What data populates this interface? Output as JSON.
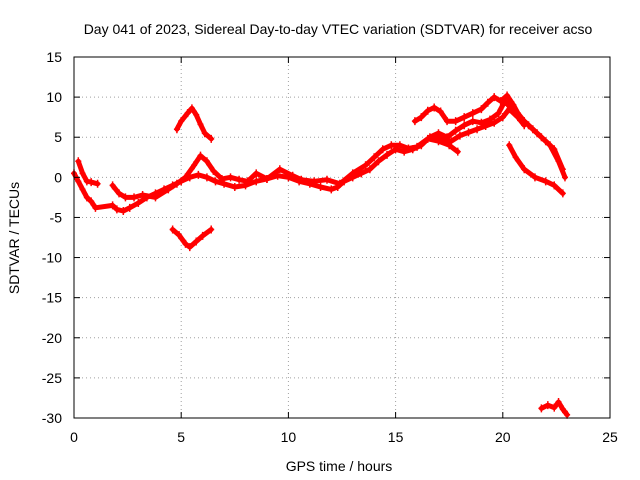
{
  "chart_data": {
    "type": "scatter",
    "title": "Day 041 of 2023, Sidereal Day-to-day VTEC variation (SDTVAR) for receiver acso",
    "xlabel": "GPS time / hours",
    "ylabel": "SDTVAR / TECUs",
    "xlim": [
      0,
      25
    ],
    "ylim": [
      -30,
      15
    ],
    "xticks": [
      0,
      5,
      10,
      15,
      20,
      25
    ],
    "yticks": [
      15,
      10,
      5,
      0,
      -5,
      -10,
      -15,
      -20,
      -25,
      -30
    ],
    "grid": true,
    "legend": "none",
    "series_color": "#ff0000",
    "series": [
      {
        "name": "main-trace",
        "points": [
          [
            0.0,
            0.5
          ],
          [
            0.2,
            -0.5
          ],
          [
            0.4,
            -1.5
          ],
          [
            0.6,
            -2.5
          ],
          [
            0.8,
            -3.0
          ],
          [
            1.0,
            -3.8
          ],
          [
            1.8,
            -3.5
          ],
          [
            2.0,
            -4.0
          ],
          [
            2.3,
            -4.2
          ],
          [
            2.6,
            -3.8
          ],
          [
            3.0,
            -3.2
          ],
          [
            3.4,
            -2.5
          ],
          [
            3.8,
            -2.0
          ],
          [
            4.2,
            -1.5
          ],
          [
            4.6,
            -1.0
          ],
          [
            5.0,
            -0.5
          ],
          [
            5.4,
            0.0
          ],
          [
            5.8,
            0.3
          ],
          [
            6.2,
            0.0
          ],
          [
            6.6,
            -0.5
          ],
          [
            7.0,
            -0.8
          ],
          [
            7.5,
            -1.2
          ],
          [
            8.0,
            -1.0
          ],
          [
            8.5,
            -0.5
          ],
          [
            9.0,
            -0.2
          ],
          [
            9.5,
            0.2
          ],
          [
            10.0,
            0.0
          ],
          [
            10.5,
            -0.5
          ],
          [
            11.0,
            -0.8
          ],
          [
            11.5,
            -1.2
          ],
          [
            12.0,
            -1.5
          ],
          [
            12.3,
            -1.2
          ],
          [
            12.6,
            -0.5
          ],
          [
            13.0,
            0.0
          ],
          [
            13.4,
            0.5
          ],
          [
            13.8,
            1.0
          ],
          [
            14.2,
            2.0
          ],
          [
            14.6,
            2.8
          ],
          [
            15.0,
            3.5
          ],
          [
            15.4,
            3.2
          ],
          [
            15.8,
            3.5
          ],
          [
            16.2,
            4.0
          ],
          [
            16.6,
            5.0
          ],
          [
            17.0,
            5.5
          ],
          [
            17.4,
            5.0
          ],
          [
            17.8,
            5.8
          ],
          [
            18.2,
            6.5
          ],
          [
            18.6,
            7.0
          ],
          [
            19.0,
            6.8
          ],
          [
            19.4,
            7.2
          ],
          [
            19.8,
            8.0
          ],
          [
            20.1,
            9.5
          ],
          [
            20.4,
            8.5
          ],
          [
            20.7,
            8.0
          ],
          [
            21.0,
            7.0
          ],
          [
            21.4,
            6.0
          ],
          [
            21.8,
            5.0
          ],
          [
            22.2,
            4.0
          ],
          [
            22.6,
            2.0
          ],
          [
            22.9,
            0.0
          ]
        ]
      },
      {
        "name": "alt-trace-a",
        "points": [
          [
            0.2,
            2.0
          ],
          [
            0.4,
            0.5
          ],
          [
            0.6,
            -0.5
          ],
          [
            0.8,
            -0.6
          ],
          [
            1.1,
            -0.8
          ]
        ]
      },
      {
        "name": "alt-trace-b",
        "points": [
          [
            1.8,
            -1.0
          ],
          [
            2.1,
            -2.0
          ],
          [
            2.4,
            -2.5
          ],
          [
            2.8,
            -2.5
          ],
          [
            3.2,
            -2.2
          ],
          [
            3.8,
            -2.5
          ],
          [
            4.4,
            -1.5
          ],
          [
            4.8,
            -0.8
          ],
          [
            5.2,
            0.0
          ],
          [
            5.6,
            1.5
          ],
          [
            5.9,
            2.7
          ],
          [
            6.2,
            2.0
          ],
          [
            6.5,
            0.8
          ],
          [
            6.9,
            -0.2
          ],
          [
            7.3,
            0.0
          ],
          [
            7.7,
            -0.3
          ],
          [
            8.1,
            -0.5
          ],
          [
            8.5,
            0.5
          ],
          [
            9.0,
            -0.2
          ],
          [
            9.6,
            1.0
          ],
          [
            10.2,
            0.2
          ],
          [
            10.6,
            -0.3
          ],
          [
            11.2,
            -0.5
          ],
          [
            11.8,
            -0.3
          ],
          [
            12.4,
            -0.8
          ],
          [
            13.0,
            0.5
          ],
          [
            13.6,
            1.5
          ],
          [
            14.0,
            2.5
          ],
          [
            14.4,
            3.5
          ],
          [
            14.8,
            4.0
          ],
          [
            15.2,
            4.0
          ],
          [
            15.6,
            3.6
          ],
          [
            16.0,
            3.8
          ],
          [
            16.5,
            4.8
          ],
          [
            17.0,
            4.5
          ],
          [
            17.5,
            4.0
          ],
          [
            17.9,
            3.2
          ]
        ]
      },
      {
        "name": "alt-trace-c",
        "points": [
          [
            15.9,
            7.0
          ],
          [
            16.2,
            7.5
          ],
          [
            16.5,
            8.3
          ],
          [
            16.8,
            8.7
          ],
          [
            17.1,
            8.2
          ],
          [
            17.4,
            7.0
          ],
          [
            17.8,
            7.0
          ],
          [
            18.2,
            7.5
          ],
          [
            18.6,
            8.0
          ],
          [
            19.0,
            8.5
          ],
          [
            19.3,
            9.3
          ],
          [
            19.6,
            10.0
          ],
          [
            19.9,
            9.5
          ],
          [
            20.2,
            10.2
          ],
          [
            20.5,
            9.0
          ],
          [
            20.8,
            7.5
          ],
          [
            21.2,
            6.5
          ],
          [
            21.6,
            5.5
          ],
          [
            22.0,
            4.5
          ],
          [
            22.4,
            3.5
          ],
          [
            22.8,
            1.0
          ]
        ]
      },
      {
        "name": "alt-trace-d",
        "points": [
          [
            16.8,
            5.0
          ],
          [
            17.2,
            4.8
          ],
          [
            17.6,
            4.5
          ],
          [
            18.0,
            5.2
          ],
          [
            18.4,
            5.6
          ],
          [
            18.8,
            6.0
          ],
          [
            19.2,
            6.4
          ],
          [
            19.6,
            6.8
          ],
          [
            20.0,
            7.5
          ],
          [
            20.3,
            8.5
          ],
          [
            20.7,
            7.5
          ],
          [
            21.0,
            6.5
          ]
        ]
      },
      {
        "name": "spike-upper",
        "points": [
          [
            4.8,
            6.0
          ],
          [
            5.0,
            7.0
          ],
          [
            5.3,
            8.0
          ],
          [
            5.5,
            8.6
          ],
          [
            5.7,
            7.8
          ],
          [
            5.9,
            6.6
          ],
          [
            6.1,
            5.5
          ],
          [
            6.4,
            4.8
          ]
        ]
      },
      {
        "name": "spike-lower",
        "points": [
          [
            4.6,
            -6.5
          ],
          [
            4.9,
            -7.2
          ],
          [
            5.2,
            -8.3
          ],
          [
            5.4,
            -8.7
          ],
          [
            5.7,
            -8.0
          ],
          [
            6.0,
            -7.3
          ],
          [
            6.4,
            -6.5
          ]
        ]
      },
      {
        "name": "drop-late",
        "points": [
          [
            20.3,
            4.0
          ],
          [
            20.6,
            2.5
          ],
          [
            21.0,
            1.0
          ],
          [
            21.5,
            0.0
          ],
          [
            22.0,
            -0.5
          ],
          [
            22.4,
            -1.0
          ],
          [
            22.8,
            -2.0
          ]
        ]
      },
      {
        "name": "drop-end",
        "points": [
          [
            21.8,
            -28.8
          ],
          [
            22.1,
            -28.4
          ],
          [
            22.4,
            -28.7
          ],
          [
            22.6,
            -28.0
          ],
          [
            22.8,
            -28.9
          ],
          [
            23.0,
            -29.6
          ]
        ]
      }
    ]
  }
}
